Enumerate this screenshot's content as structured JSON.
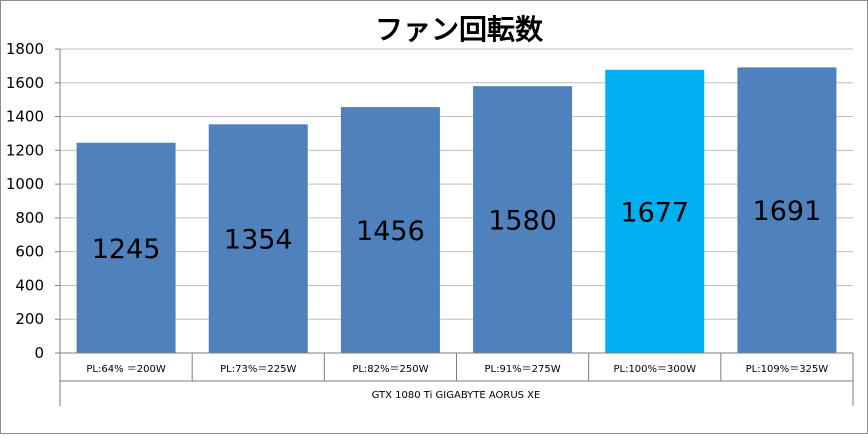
{
  "chart_data": {
    "type": "bar",
    "title": "ファン回転数",
    "categories": [
      "PL:64% ＝200W",
      "PL:73%＝225W",
      "PL:82%＝250W",
      "PL:91%＝275W",
      "PL:100%＝300W",
      "PL:109%＝325W"
    ],
    "group_label": "GTX 1080 Ti GIGABYTE AORUS XE",
    "values": [
      1245,
      1354,
      1456,
      1580,
      1677,
      1691
    ],
    "ylim": [
      0,
      1800
    ],
    "yticks": [
      0,
      200,
      400,
      600,
      800,
      1000,
      1200,
      1400,
      1600,
      1800
    ],
    "grid": true,
    "data_labels": true,
    "colors": {
      "bar": "#4f81bd",
      "highlight_bar": "#00b0f0",
      "grid": "#bfbfbf",
      "axis": "#7f7f7f"
    },
    "highlight_index": 4,
    "legend": "none"
  }
}
